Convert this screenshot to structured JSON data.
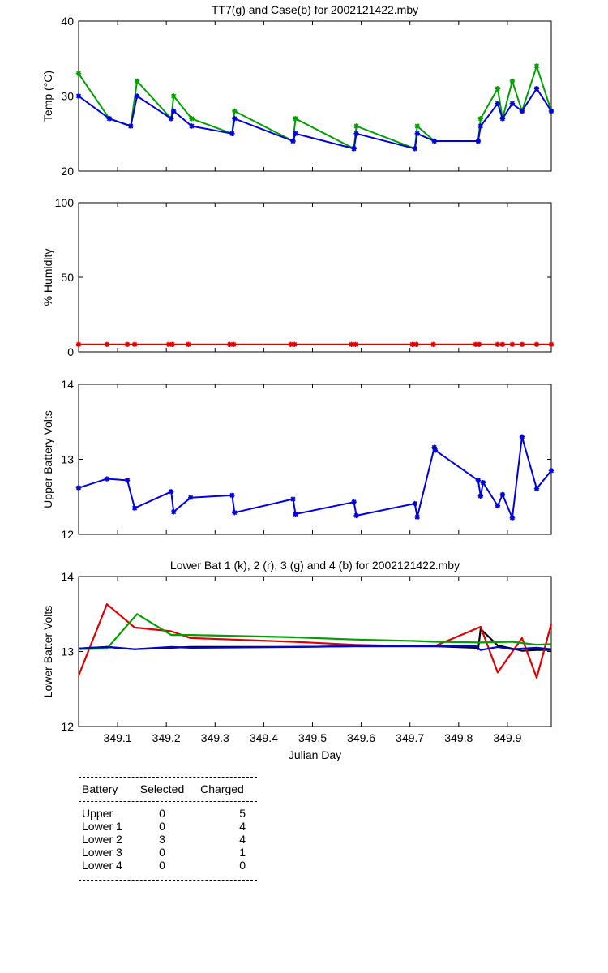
{
  "chart_data": [
    {
      "type": "line",
      "title": "TT7(g) and Case(b) for 2002121422.mby",
      "xlabel": "",
      "ylabel": "Temp  (°C)",
      "xlim": [
        349.02,
        349.99
      ],
      "ylim": [
        20,
        40
      ],
      "yticks": [
        "20",
        "30",
        "40"
      ],
      "grid": false,
      "series": [
        {
          "color": "#00a000",
          "marker": "*",
          "x": [
            349.02,
            349.083,
            349.127,
            349.14,
            349.21,
            349.215,
            349.252,
            349.335,
            349.34,
            349.46,
            349.465,
            349.585,
            349.59,
            349.71,
            349.715,
            349.75,
            349.84,
            349.845,
            349.88,
            349.89,
            349.91,
            349.93,
            349.96,
            349.99
          ],
          "y": [
            33,
            27,
            26,
            32,
            27,
            30,
            27,
            25,
            28,
            24,
            27,
            23,
            26,
            23,
            26,
            24,
            24,
            27,
            31,
            27,
            32,
            28,
            34,
            28
          ]
        },
        {
          "color": "#0000e0",
          "marker": "*",
          "x": [
            349.02,
            349.083,
            349.127,
            349.14,
            349.21,
            349.215,
            349.252,
            349.335,
            349.34,
            349.46,
            349.465,
            349.585,
            349.59,
            349.71,
            349.715,
            349.75,
            349.84,
            349.845,
            349.88,
            349.89,
            349.91,
            349.93,
            349.96,
            349.99
          ],
          "y": [
            30,
            27,
            26,
            30,
            27,
            28,
            26,
            25,
            27,
            24,
            25,
            23,
            25,
            23,
            25,
            24,
            24,
            26,
            29,
            27,
            29,
            28,
            31,
            28
          ]
        }
      ]
    },
    {
      "type": "line",
      "title": "",
      "xlabel": "",
      "ylabel": "% Humidity",
      "xlim": [
        349.02,
        349.99
      ],
      "ylim": [
        0,
        100
      ],
      "yticks": [
        "0",
        "50",
        "100"
      ],
      "grid": false,
      "series": [
        {
          "color": "#e00000",
          "marker": "*",
          "x": [
            349.02,
            349.078,
            349.12,
            349.135,
            349.205,
            349.212,
            349.245,
            349.33,
            349.338,
            349.455,
            349.463,
            349.58,
            349.588,
            349.705,
            349.713,
            349.748,
            349.835,
            349.842,
            349.88,
            349.89,
            349.91,
            349.93,
            349.96,
            349.99
          ],
          "y": [
            5,
            5,
            5,
            5,
            5,
            5,
            5,
            5,
            5,
            5,
            5,
            5,
            5,
            5,
            5,
            5,
            5,
            5,
            5,
            5,
            5,
            5,
            5,
            5
          ]
        }
      ]
    },
    {
      "type": "line",
      "title": "",
      "xlabel": "",
      "ylabel": "Upper Battery Volts",
      "xlim": [
        349.02,
        349.99
      ],
      "ylim": [
        12,
        14
      ],
      "yticks": [
        "12",
        "13",
        "14"
      ],
      "grid": false,
      "series": [
        {
          "color": "#0000e0",
          "marker": "*",
          "x": [
            349.02,
            349.078,
            349.12,
            349.135,
            349.21,
            349.215,
            349.25,
            349.335,
            349.34,
            349.46,
            349.465,
            349.585,
            349.59,
            349.71,
            349.715,
            349.75,
            349.752,
            349.84,
            349.845,
            349.85,
            349.88,
            349.89,
            349.91,
            349.93,
            349.96,
            349.99
          ],
          "y": [
            12.62,
            12.74,
            12.72,
            12.35,
            12.57,
            12.3,
            12.49,
            12.52,
            12.29,
            12.47,
            12.27,
            12.43,
            12.25,
            12.41,
            12.23,
            13.16,
            13.12,
            12.72,
            12.51,
            12.69,
            12.38,
            12.53,
            12.22,
            13.3,
            12.61,
            12.85
          ]
        }
      ]
    },
    {
      "type": "line",
      "title": "Lower Bat 1 (k), 2 (r), 3 (g) and 4 (b) for 2002121422.mby",
      "xlabel": "Julian Day",
      "ylabel": "Lower Batter Volts",
      "xlim": [
        349.02,
        349.99
      ],
      "ylim": [
        12,
        14
      ],
      "yticks": [
        "12",
        "13",
        "14"
      ],
      "xticks": [
        "349.1",
        "349.2",
        "349.3",
        "349.4",
        "349.5",
        "349.6",
        "349.7",
        "349.8",
        "349.9"
      ],
      "grid": false,
      "series": [
        {
          "color": "#000000",
          "marker": "",
          "x": [
            349.02,
            349.078,
            349.135,
            349.21,
            349.25,
            349.46,
            349.585,
            349.71,
            349.75,
            349.835,
            349.84,
            349.845,
            349.88,
            349.93,
            349.96,
            349.99
          ],
          "y": [
            13.04,
            13.06,
            13.03,
            13.05,
            13.06,
            13.06,
            13.07,
            13.07,
            13.07,
            13.05,
            13.03,
            13.3,
            13.08,
            13.01,
            13.02,
            13.02
          ]
        },
        {
          "color": "#e00000",
          "marker": "",
          "x": [
            349.02,
            349.078,
            349.135,
            349.21,
            349.25,
            349.46,
            349.585,
            349.71,
            349.75,
            349.845,
            349.88,
            349.93,
            349.96,
            349.99
          ],
          "y": [
            12.68,
            13.63,
            13.32,
            13.27,
            13.18,
            13.13,
            13.09,
            13.07,
            13.07,
            13.33,
            12.72,
            13.18,
            12.65,
            13.37
          ]
        },
        {
          "color": "#00a000",
          "marker": "",
          "x": [
            349.02,
            349.078,
            349.14,
            349.21,
            349.25,
            349.46,
            349.585,
            349.71,
            349.75,
            349.845,
            349.91,
            349.96,
            349.99
          ],
          "y": [
            13.03,
            13.04,
            13.5,
            13.22,
            13.22,
            13.19,
            13.16,
            13.14,
            13.13,
            13.12,
            13.13,
            13.09,
            13.1
          ]
        },
        {
          "color": "#0000e0",
          "marker": "",
          "x": [
            349.02,
            349.078,
            349.135,
            349.21,
            349.25,
            349.46,
            349.585,
            349.71,
            349.75,
            349.835,
            349.845,
            349.88,
            349.91,
            349.96,
            349.99
          ],
          "y": [
            13.04,
            13.06,
            13.03,
            13.06,
            13.05,
            13.06,
            13.07,
            13.07,
            13.07,
            13.07,
            13.02,
            13.06,
            13.03,
            13.05,
            13.03
          ]
        }
      ]
    }
  ],
  "table": {
    "headers": [
      "Battery",
      "Selected",
      "Charged"
    ],
    "rows": [
      [
        "Upper",
        "0",
        "5"
      ],
      [
        "Lower 1",
        "0",
        "4"
      ],
      [
        "Lower 2",
        "3",
        "4"
      ],
      [
        "Lower 3",
        "0",
        "1"
      ],
      [
        "Lower 4",
        "0",
        "0"
      ]
    ]
  }
}
